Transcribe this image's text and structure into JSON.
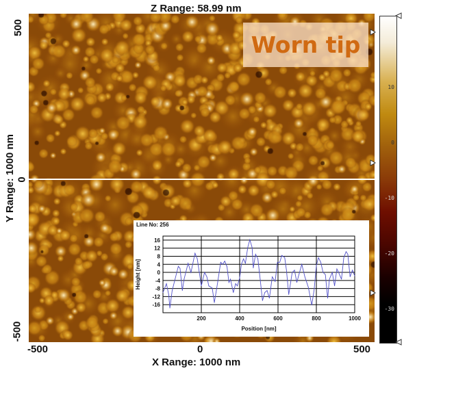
{
  "header": {
    "z_range": "Z Range:  58.99 nm"
  },
  "axes": {
    "x_label": "X Range: 1000 nm",
    "y_label": "Y Range: 1000 nm",
    "x_ticks": [
      "-500",
      "0",
      "500"
    ],
    "y_ticks": [
      "500",
      "0",
      "-500"
    ]
  },
  "annotation": {
    "text": "Worn tip",
    "text_color": "#d06a12"
  },
  "colorbar": {
    "ticks": [
      "10",
      "0",
      "-10",
      "-20",
      "-30"
    ],
    "colors": [
      "#ffffff",
      "#c08a10",
      "#8a3a08",
      "#4a0600",
      "#000000"
    ]
  },
  "chart_data": {
    "type": "line",
    "title": "Line No: 256",
    "xlabel": "Position [nm]",
    "ylabel": "Height [nm]",
    "xlim": [
      0,
      1000
    ],
    "ylim": [
      -20,
      18
    ],
    "xticks": [
      "200",
      "400",
      "600",
      "800",
      "1000"
    ],
    "yticks": [
      "16",
      "12",
      "8",
      "4",
      "0",
      "-4",
      "-8",
      "-12",
      "-16"
    ],
    "grid": true,
    "line_color": "#5050c8",
    "x": [
      0,
      18,
      30,
      36,
      48,
      72,
      80,
      89,
      101,
      110,
      131,
      146,
      167,
      179,
      200,
      217,
      229,
      239,
      257,
      268,
      286,
      301,
      312,
      322,
      334,
      344,
      352,
      367,
      379,
      388,
      400,
      409,
      420,
      430,
      442,
      453,
      465,
      471,
      483,
      495,
      507,
      519,
      531,
      543,
      555,
      570,
      585,
      597,
      609,
      620,
      635,
      644,
      656,
      674,
      686,
      698,
      706,
      724,
      740,
      758,
      776,
      788,
      800,
      811,
      823,
      835,
      847,
      859,
      868,
      883,
      895,
      907,
      916,
      931,
      943,
      955,
      964,
      976,
      988,
      1000
    ],
    "y": [
      -10,
      -5.6,
      -11,
      -17.7,
      -9,
      0,
      3,
      2,
      -9,
      -3.4,
      4.5,
      0,
      9.5,
      6.7,
      -6.7,
      0,
      -2.2,
      -6.7,
      -7.8,
      -15,
      -4.5,
      5,
      4,
      5.6,
      2.8,
      -5,
      -3.4,
      -10,
      -5.6,
      -6.7,
      -2.8,
      4,
      6.7,
      4.5,
      12.3,
      16.2,
      12.3,
      2.2,
      9,
      6.7,
      -3.4,
      -14,
      -10,
      -9,
      -12.8,
      -2.2,
      -4.5,
      5,
      5,
      8.4,
      7.3,
      1.1,
      -11,
      0,
      1.1,
      -5,
      -2.2,
      4,
      -2.2,
      -7.3,
      -16.2,
      -9,
      3.4,
      7.3,
      5,
      0,
      -1.1,
      -12.8,
      -3.4,
      0,
      -6.7,
      1.7,
      0,
      -3.4,
      7.3,
      10.3,
      9,
      -2.2,
      1.1,
      -1.7
    ]
  }
}
